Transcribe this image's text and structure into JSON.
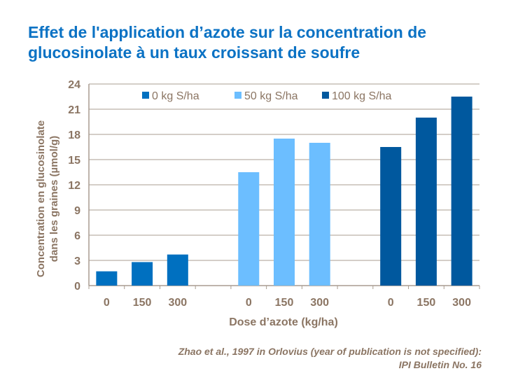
{
  "chart_data": {
    "type": "bar",
    "title": "Effet de l'application d’azote sur la concentration de glucosinolate à un taux croissant de soufre",
    "xlabel": "Dose d’azote (kg/ha)",
    "ylabel": "Concentration en glucosinolate dans les graines (µmol/g)",
    "ylim": [
      0,
      24
    ],
    "yticks": [
      0,
      3,
      6,
      9,
      12,
      15,
      18,
      21,
      24
    ],
    "grid": true,
    "legend_position": "top",
    "groups": [
      {
        "name": "0 kg S/ha",
        "color": "#0070C0",
        "categories": [
          "0",
          "150",
          "300"
        ],
        "values": [
          1.7,
          2.8,
          3.7
        ]
      },
      {
        "name": "50 kg S/ha",
        "color": "#6CBEFF",
        "categories": [
          "0",
          "150",
          "300"
        ],
        "values": [
          13.5,
          17.5,
          17.0
        ]
      },
      {
        "name": "100 kg S/ha",
        "color": "#00589E",
        "categories": [
          "0",
          "150",
          "300"
        ],
        "values": [
          16.5,
          20.0,
          22.5
        ]
      }
    ]
  },
  "source": {
    "line1": "Zhao et al., 1997 in Orlovius (year of publication is not specified):",
    "line2": "IPI Bulletin No. 16"
  }
}
